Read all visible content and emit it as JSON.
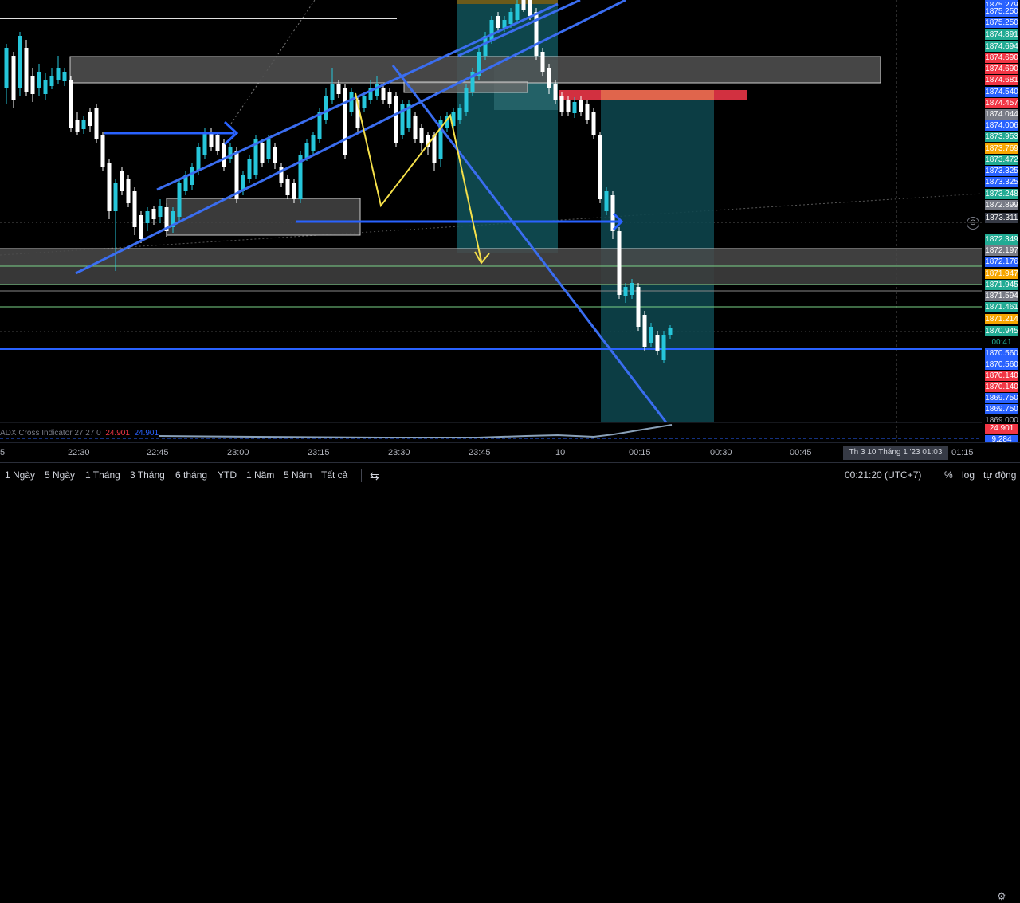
{
  "chart": {
    "indicator": {
      "name": "ADX Cross Indicator",
      "params": "27 27 0",
      "value_1": "24.901",
      "value_2": "24.901",
      "scale_labels": [
        {
          "text": "24.901",
          "color": "#f23645"
        },
        {
          "text": "9.284",
          "color": "#2962ff"
        }
      ]
    },
    "countdown": "00:41",
    "price_labels": [
      {
        "text": "1875.279",
        "color": "#2962ff"
      },
      {
        "text": "1875.250",
        "color": "#2962ff"
      },
      {
        "text": "1875.250",
        "color": "#2962ff"
      },
      {
        "text": "1874.891",
        "color": "#22ab94"
      },
      {
        "text": "1874.694",
        "color": "#22ab94"
      },
      {
        "text": "1874.690",
        "color": "#f23645"
      },
      {
        "text": "1874.690",
        "color": "#f23645"
      },
      {
        "text": "1874.681",
        "color": "#f23645"
      },
      {
        "text": "1874.540",
        "color": "#2962ff"
      },
      {
        "text": "1874.457",
        "color": "#f23645"
      },
      {
        "text": "1874.044",
        "color": "#787b86"
      },
      {
        "text": "1874.006",
        "color": "#2962ff"
      },
      {
        "text": "1873.953",
        "color": "#22ab94"
      },
      {
        "text": "1873.769",
        "color": "#f7a600"
      },
      {
        "text": "1873.472",
        "color": "#22ab94"
      },
      {
        "text": "1873.325",
        "color": "#2962ff"
      },
      {
        "text": "1873.325",
        "color": "#2962ff"
      },
      {
        "text": "1873.248",
        "color": "#22ab94"
      },
      {
        "text": "1872.899",
        "color": "#787b86"
      },
      {
        "text": "1873.311",
        "color": "#363a45"
      },
      {
        "text": "1872.349",
        "color": "#22ab94"
      },
      {
        "text": "1872.197",
        "color": "#787b86"
      },
      {
        "text": "1872.176",
        "color": "#2962ff"
      },
      {
        "text": "1871.947",
        "color": "#f7a600"
      },
      {
        "text": "1871.945",
        "color": "#22ab94"
      },
      {
        "text": "1871.594",
        "color": "#787b86"
      },
      {
        "text": "1871.461",
        "color": "#22ab94"
      },
      {
        "text": "1871.214",
        "color": "#f7a600"
      },
      {
        "text": "1870.945",
        "color": "#22ab94"
      },
      {
        "text": "1870.560",
        "color": "#2962ff"
      },
      {
        "text": "1870.560",
        "color": "#2962ff"
      },
      {
        "text": "1870.140",
        "color": "#f23645"
      },
      {
        "text": "1870.140",
        "color": "#f23645"
      },
      {
        "text": "1869.750",
        "color": "#2962ff"
      },
      {
        "text": "1869.750",
        "color": "#2962ff"
      },
      {
        "text": "1869.000",
        "color": "#000000"
      }
    ],
    "time_labels": [
      "5",
      "22:30",
      "22:45",
      "23:00",
      "23:15",
      "23:30",
      "23:45",
      "10",
      "00:15",
      "00:30",
      "00:45",
      "01:15"
    ],
    "crosshair_time": "Th 3 10 Tháng 1 '23   01:03"
  },
  "bottom_bar": {
    "ranges": [
      "1 Ngày",
      "5 Ngày",
      "1 Tháng",
      "3 Tháng",
      "6 tháng",
      "YTD",
      "1 Năm",
      "5 Năm",
      "Tất cả"
    ],
    "clock": "00:21:20 (UTC+7)",
    "percent": "%",
    "log": "log",
    "auto": "tự động"
  },
  "icons": {
    "compare": "compare-icon",
    "settings": "gear-icon",
    "zoom": "zoom-icon"
  }
}
